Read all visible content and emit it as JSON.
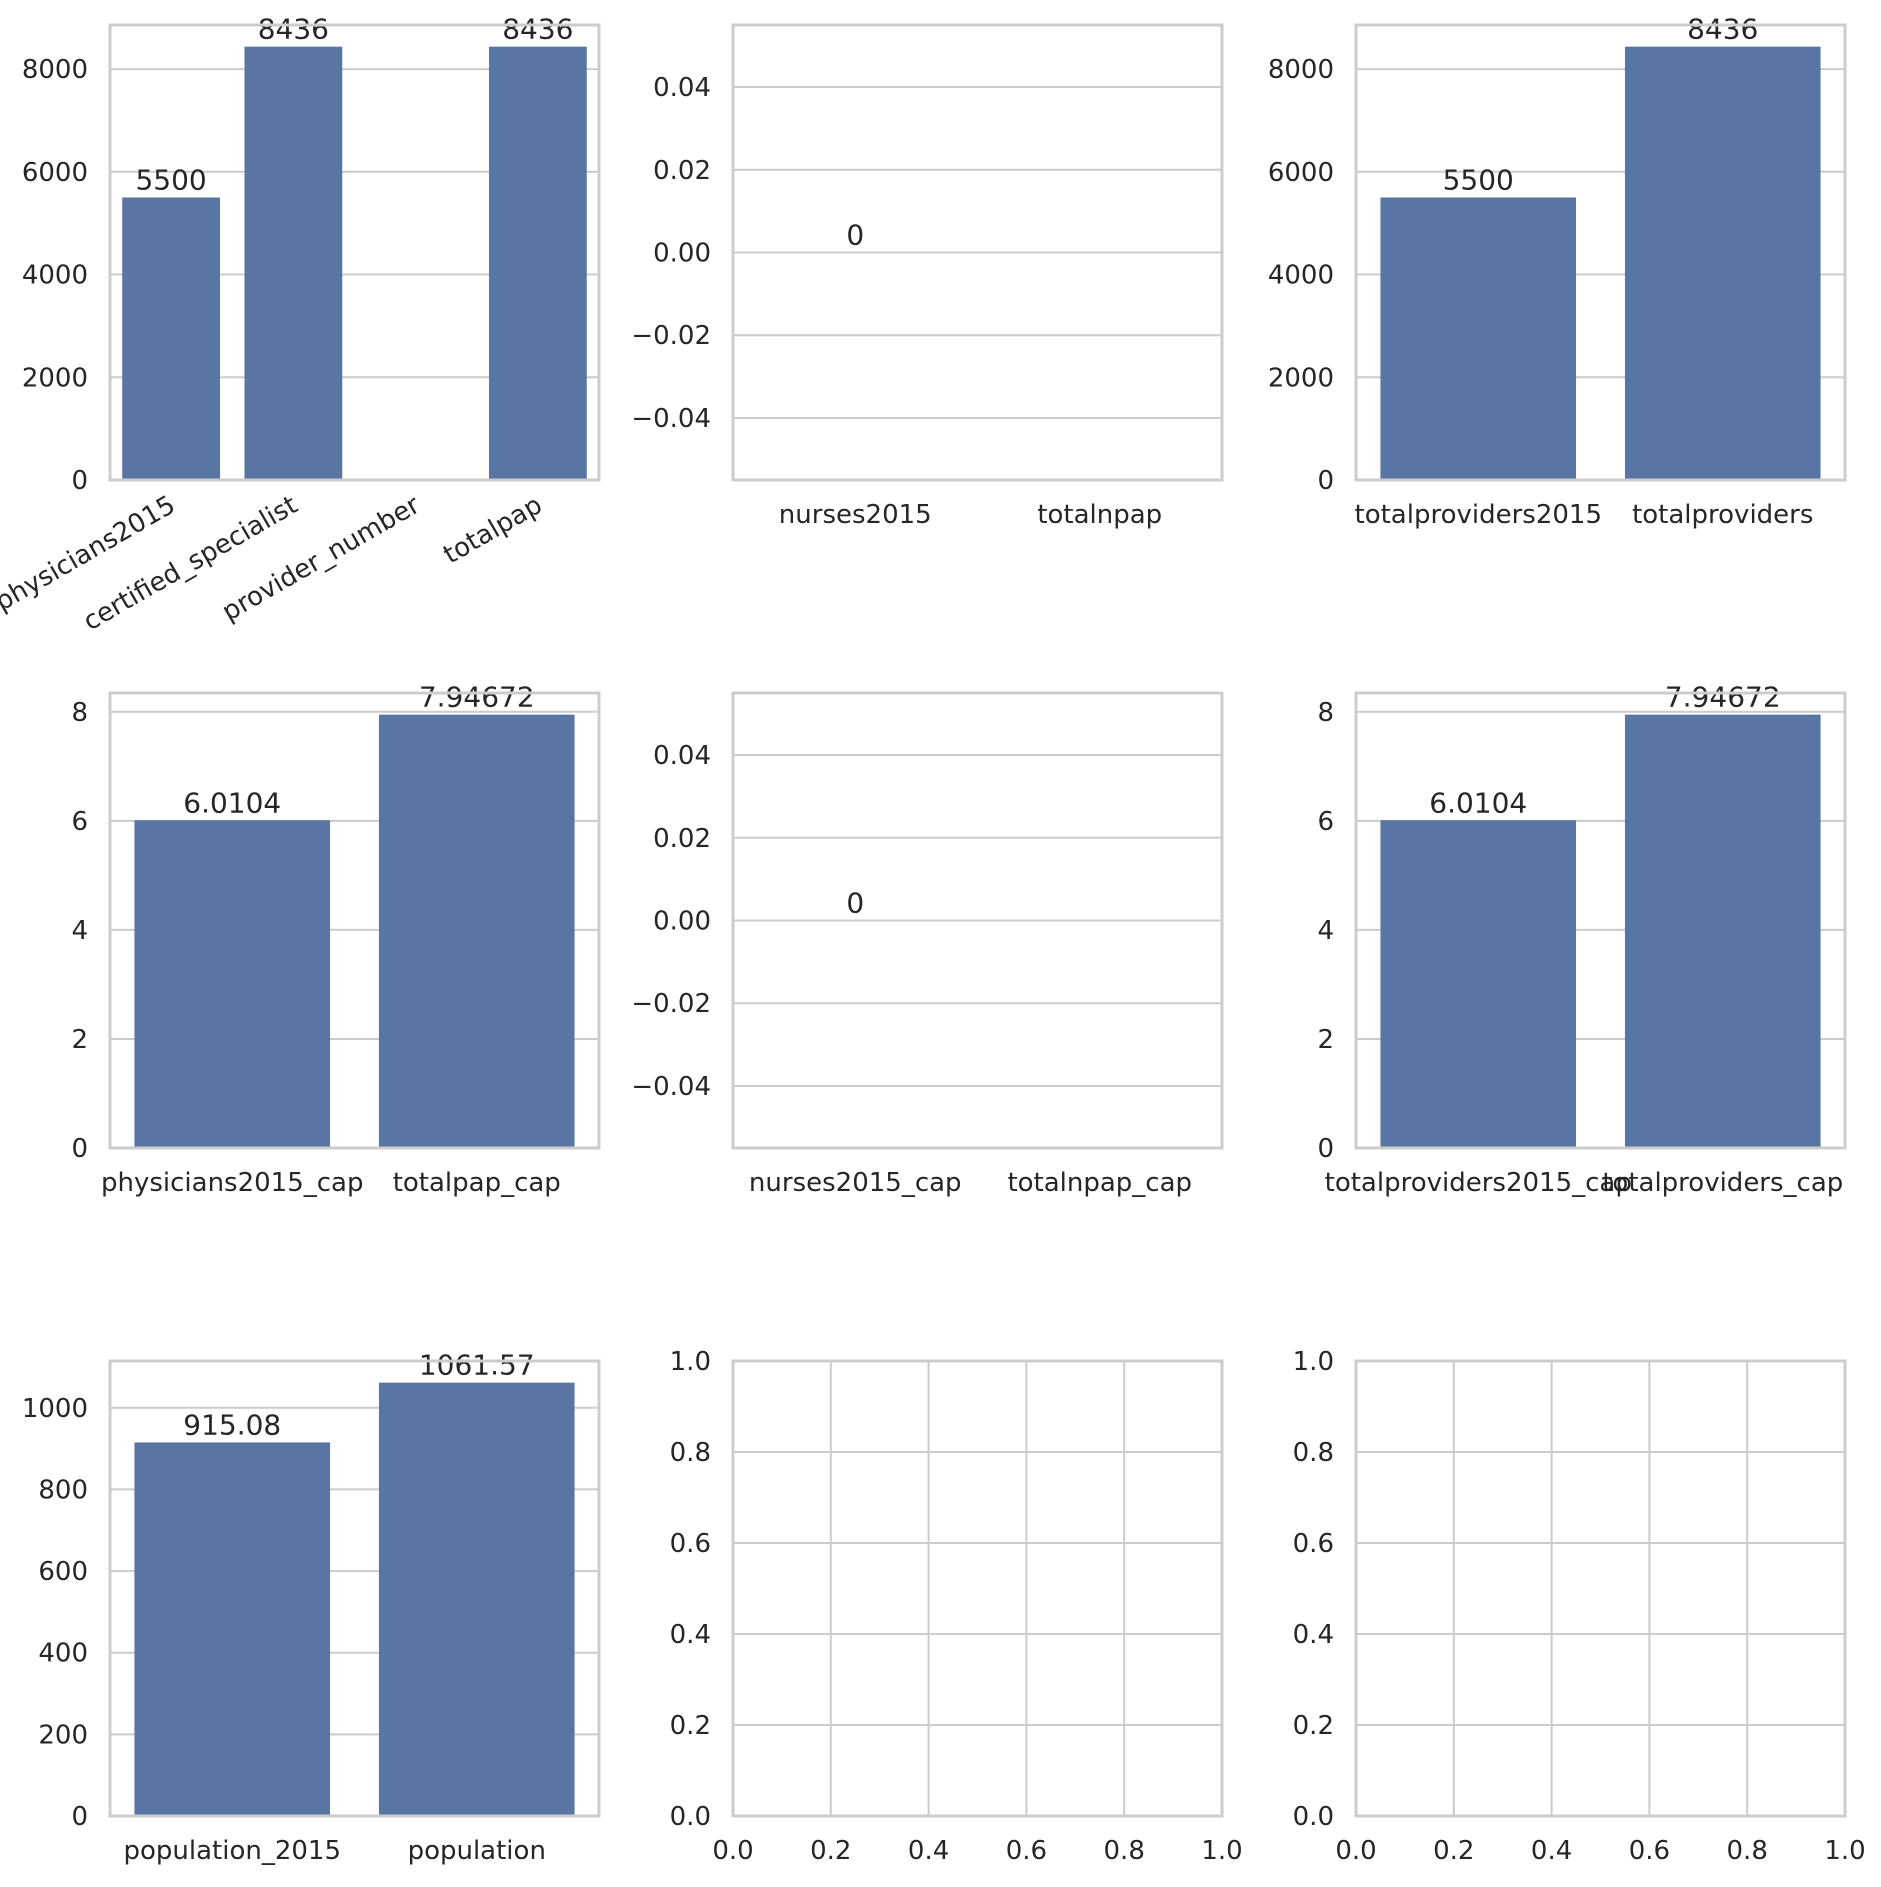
{
  "style": {
    "bar_color": "#5975a4",
    "grid_color": "#cccccc",
    "spine_color": "#cccccc",
    "text_color": "#262626",
    "background": "#ffffff"
  },
  "chart_data": [
    {
      "type": "bar",
      "categories": [
        "physicians2015",
        "certified_specialist",
        "provider_number",
        "totalpap"
      ],
      "values": [
        5500,
        8436,
        null,
        8436
      ],
      "data_labels": [
        "5500",
        "8436",
        "",
        "8436"
      ],
      "ylim": [
        0,
        8858
      ],
      "yticks": [
        0,
        2000,
        4000,
        6000,
        8000
      ],
      "ytick_labels": [
        "0",
        "2000",
        "4000",
        "6000",
        "8000"
      ],
      "xtick_rotation": 30,
      "grid": true,
      "title": "",
      "xlabel": "",
      "ylabel": ""
    },
    {
      "type": "bar",
      "categories": [
        "nurses2015",
        "totalnpap"
      ],
      "values": [
        0,
        null
      ],
      "data_labels": [
        "0",
        ""
      ],
      "ylim": [
        -0.055,
        0.055
      ],
      "yticks": [
        -0.04,
        -0.02,
        0.0,
        0.02,
        0.04
      ],
      "ytick_labels": [
        "−0.04",
        "−0.02",
        "0.00",
        "0.02",
        "0.04"
      ],
      "grid": true,
      "title": "",
      "xlabel": "",
      "ylabel": ""
    },
    {
      "type": "bar",
      "categories": [
        "totalproviders2015",
        "totalproviders"
      ],
      "values": [
        5500,
        8436
      ],
      "data_labels": [
        "5500",
        "8436"
      ],
      "ylim": [
        0,
        8858
      ],
      "yticks": [
        0,
        2000,
        4000,
        6000,
        8000
      ],
      "ytick_labels": [
        "0",
        "2000",
        "4000",
        "6000",
        "8000"
      ],
      "grid": true,
      "title": "",
      "xlabel": "",
      "ylabel": ""
    },
    {
      "type": "bar",
      "categories": [
        "physicians2015_cap",
        "totalpap_cap"
      ],
      "values": [
        6.0104,
        7.94672
      ],
      "data_labels": [
        "6.0104",
        "7.94672"
      ],
      "ylim": [
        0,
        8.344
      ],
      "yticks": [
        0,
        2,
        4,
        6,
        8
      ],
      "ytick_labels": [
        "0",
        "2",
        "4",
        "6",
        "8"
      ],
      "grid": true,
      "title": "",
      "xlabel": "",
      "ylabel": ""
    },
    {
      "type": "bar",
      "categories": [
        "nurses2015_cap",
        "totalnpap_cap"
      ],
      "values": [
        0,
        null
      ],
      "data_labels": [
        "0",
        ""
      ],
      "ylim": [
        -0.055,
        0.055
      ],
      "yticks": [
        -0.04,
        -0.02,
        0.0,
        0.02,
        0.04
      ],
      "ytick_labels": [
        "−0.04",
        "−0.02",
        "0.00",
        "0.02",
        "0.04"
      ],
      "grid": true,
      "title": "",
      "xlabel": "",
      "ylabel": ""
    },
    {
      "type": "bar",
      "categories": [
        "totalproviders2015_cap",
        "totalproviders_cap"
      ],
      "values": [
        6.0104,
        7.94672
      ],
      "data_labels": [
        "6.0104",
        "7.94672"
      ],
      "ylim": [
        0,
        8.344
      ],
      "yticks": [
        0,
        2,
        4,
        6,
        8
      ],
      "ytick_labels": [
        "0",
        "2",
        "4",
        "6",
        "8"
      ],
      "grid": true,
      "title": "",
      "xlabel": "",
      "ylabel": ""
    },
    {
      "type": "bar",
      "categories": [
        "population_2015",
        "population"
      ],
      "values": [
        915.08,
        1061.57
      ],
      "data_labels": [
        "915.08",
        "1061.57"
      ],
      "ylim": [
        0,
        1114.6
      ],
      "yticks": [
        0,
        200,
        400,
        600,
        800,
        1000
      ],
      "ytick_labels": [
        "0",
        "200",
        "400",
        "600",
        "800",
        "1000"
      ],
      "grid": true,
      "title": "",
      "xlabel": "",
      "ylabel": ""
    },
    {
      "type": "empty",
      "xlim": [
        0,
        1
      ],
      "ylim": [
        0,
        1
      ],
      "xticks": [
        0,
        0.2,
        0.4,
        0.6,
        0.8,
        1.0
      ],
      "yticks": [
        0,
        0.2,
        0.4,
        0.6,
        0.8,
        1.0
      ],
      "xtick_labels": [
        "0.0",
        "0.2",
        "0.4",
        "0.6",
        "0.8",
        "1.0"
      ],
      "ytick_labels": [
        "0.0",
        "0.2",
        "0.4",
        "0.6",
        "0.8",
        "1.0"
      ],
      "grid": true,
      "title": "",
      "xlabel": "",
      "ylabel": ""
    },
    {
      "type": "empty",
      "xlim": [
        0,
        1
      ],
      "ylim": [
        0,
        1
      ],
      "xticks": [
        0,
        0.2,
        0.4,
        0.6,
        0.8,
        1.0
      ],
      "yticks": [
        0,
        0.2,
        0.4,
        0.6,
        0.8,
        1.0
      ],
      "xtick_labels": [
        "0.0",
        "0.2",
        "0.4",
        "0.6",
        "0.8",
        "1.0"
      ],
      "ytick_labels": [
        "0.0",
        "0.2",
        "0.4",
        "0.6",
        "0.8",
        "1.0"
      ],
      "grid": true,
      "title": "",
      "xlabel": "",
      "ylabel": ""
    }
  ]
}
